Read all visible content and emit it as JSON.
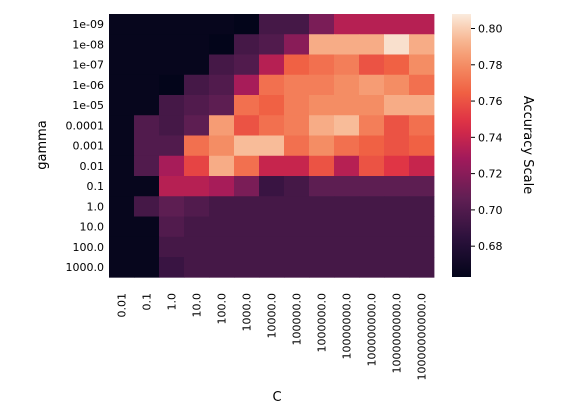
{
  "chart_data": {
    "type": "heatmap",
    "xlabel": "C",
    "ylabel": "gamma",
    "colorbar_label": "Accuracy Scale",
    "colormap": "rocket",
    "x": [
      "0.01",
      "0.1",
      "1.0",
      "10.0",
      "100.0",
      "1000.0",
      "10000.0",
      "100000.0",
      "1000000.0",
      "10000000.0",
      "100000000.0",
      "1000000000.0",
      "10000000000.0"
    ],
    "y": [
      "1e-09",
      "1e-08",
      "1e-07",
      "1e-06",
      "1e-05",
      "0.0001",
      "0.001",
      "0.01",
      "0.1",
      "1.0",
      "10.0",
      "100.0",
      "1000.0"
    ],
    "z": [
      [
        0.665,
        0.665,
        0.665,
        0.665,
        0.665,
        0.66,
        0.695,
        0.695,
        0.715,
        0.735,
        0.735,
        0.735,
        0.735
      ],
      [
        0.665,
        0.665,
        0.665,
        0.665,
        0.66,
        0.695,
        0.7,
        0.72,
        0.79,
        0.79,
        0.79,
        0.805,
        0.79
      ],
      [
        0.665,
        0.665,
        0.665,
        0.665,
        0.695,
        0.7,
        0.735,
        0.765,
        0.77,
        0.775,
        0.76,
        0.765,
        0.78
      ],
      [
        0.665,
        0.665,
        0.66,
        0.695,
        0.7,
        0.73,
        0.77,
        0.775,
        0.775,
        0.78,
        0.785,
        0.78,
        0.77
      ],
      [
        0.665,
        0.665,
        0.695,
        0.7,
        0.705,
        0.77,
        0.765,
        0.775,
        0.78,
        0.78,
        0.78,
        0.79,
        0.79
      ],
      [
        0.665,
        0.7,
        0.695,
        0.705,
        0.785,
        0.76,
        0.77,
        0.775,
        0.79,
        0.795,
        0.775,
        0.76,
        0.77
      ],
      [
        0.665,
        0.7,
        0.7,
        0.77,
        0.78,
        0.795,
        0.795,
        0.77,
        0.78,
        0.77,
        0.765,
        0.76,
        0.765
      ],
      [
        0.665,
        0.7,
        0.73,
        0.755,
        0.79,
        0.77,
        0.74,
        0.74,
        0.76,
        0.735,
        0.76,
        0.75,
        0.74
      ],
      [
        0.665,
        0.665,
        0.735,
        0.735,
        0.73,
        0.715,
        0.69,
        0.695,
        0.705,
        0.705,
        0.705,
        0.705,
        0.705
      ],
      [
        0.665,
        0.695,
        0.705,
        0.7,
        0.695,
        0.695,
        0.695,
        0.695,
        0.695,
        0.695,
        0.695,
        0.695,
        0.695
      ],
      [
        0.665,
        0.665,
        0.7,
        0.695,
        0.695,
        0.695,
        0.695,
        0.695,
        0.695,
        0.695,
        0.695,
        0.695,
        0.695
      ],
      [
        0.665,
        0.665,
        0.695,
        0.695,
        0.695,
        0.695,
        0.695,
        0.695,
        0.695,
        0.695,
        0.695,
        0.695,
        0.695
      ],
      [
        0.665,
        0.665,
        0.69,
        0.695,
        0.695,
        0.695,
        0.695,
        0.695,
        0.695,
        0.695,
        0.695,
        0.695,
        0.695
      ]
    ],
    "colorbar": {
      "range": [
        0.663,
        0.808
      ],
      "ticks": [
        "0.68",
        "0.70",
        "0.72",
        "0.74",
        "0.76",
        "0.78",
        "0.80"
      ],
      "tick_values": [
        0.68,
        0.7,
        0.72,
        0.74,
        0.76,
        0.78,
        0.8
      ]
    }
  }
}
